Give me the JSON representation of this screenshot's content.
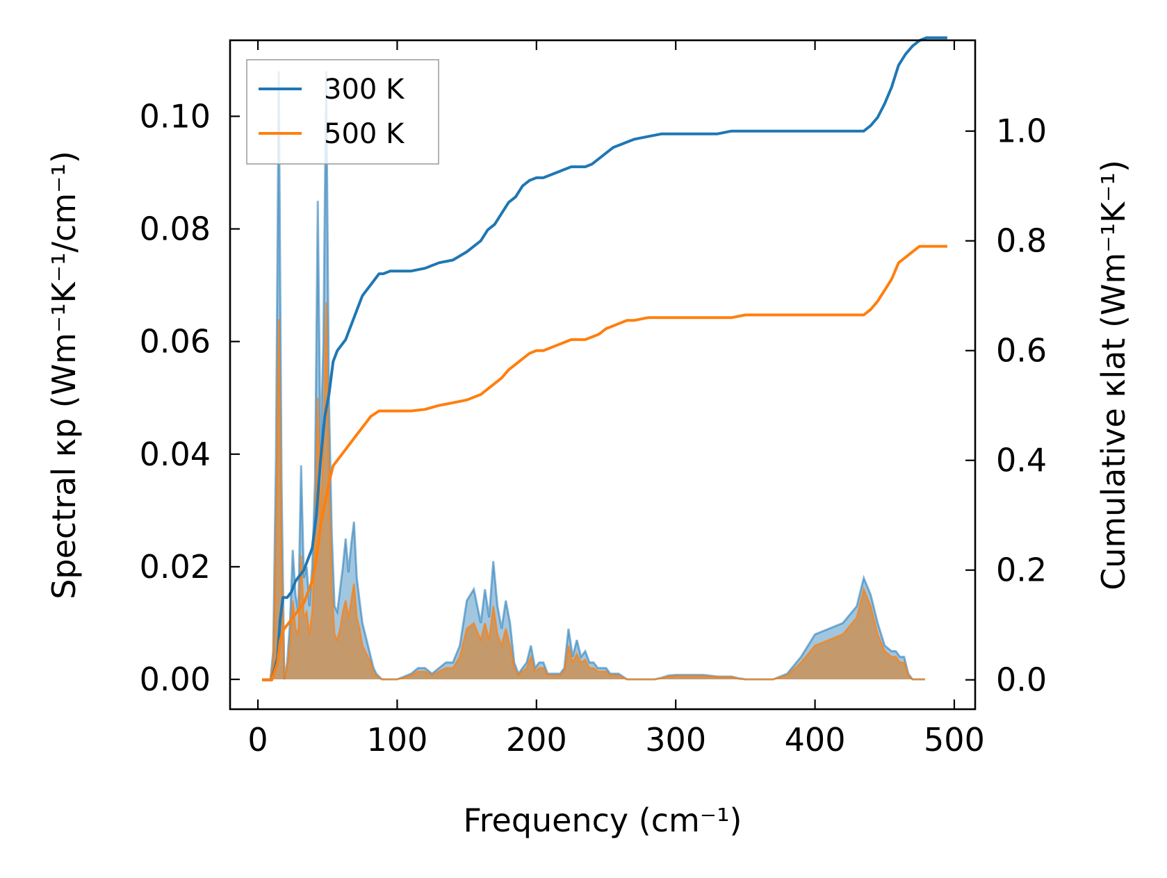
{
  "chart_data": {
    "type": "line",
    "xlabel": "Frequency (cm⁻¹)",
    "ylabel_left": "Spectral κp (Wm⁻¹K⁻¹/cm⁻¹)",
    "ylabel_right": "Cumulative κlat (Wm⁻¹K⁻¹)",
    "xlim": [
      -20,
      515
    ],
    "ylim_left": [
      -0.0053,
      0.1135
    ],
    "ylim_right": [
      -0.0535,
      1.1655
    ],
    "x_ticks": [
      "0",
      "100",
      "200",
      "300",
      "400",
      "500"
    ],
    "y_ticks_left": [
      "0.00",
      "0.02",
      "0.04",
      "0.06",
      "0.08",
      "0.10"
    ],
    "y_ticks_right": [
      "0.0",
      "0.2",
      "0.4",
      "0.6",
      "0.8",
      "1.0"
    ],
    "legend": {
      "position": "top-left",
      "entries": [
        "300 K",
        "500 K"
      ]
    },
    "colors": {
      "300K": "#1f77b4",
      "500K": "#ff7f0e",
      "overlap": "#c49a6c"
    },
    "spectral": {
      "x": [
        3,
        9,
        11,
        13,
        15,
        17,
        19,
        21,
        23,
        25,
        27,
        29,
        31,
        33,
        35,
        37,
        39,
        41,
        43,
        45,
        47,
        49,
        51,
        53,
        55,
        57,
        59,
        61,
        63,
        65,
        67,
        69,
        71,
        73,
        75,
        77,
        79,
        81,
        83,
        85,
        87,
        89,
        91,
        93,
        95,
        97,
        100,
        105,
        110,
        115,
        120,
        125,
        130,
        135,
        140,
        145,
        150,
        155,
        160,
        163,
        166,
        169,
        172,
        175,
        178,
        181,
        184,
        187,
        190,
        193,
        196,
        199,
        202,
        205,
        208,
        211,
        214,
        217,
        220,
        223,
        226,
        229,
        232,
        235,
        238,
        241,
        244,
        247,
        250,
        253,
        256,
        259,
        262,
        265,
        268,
        271,
        275,
        280,
        285,
        290,
        295,
        300,
        310,
        320,
        330,
        335,
        340,
        345,
        350,
        355,
        360,
        365,
        370,
        380,
        390,
        400,
        410,
        420,
        430,
        435,
        440,
        445,
        450,
        455,
        458,
        461,
        464,
        467,
        470,
        473,
        476,
        479,
        482,
        485,
        490,
        495
      ],
      "k300": [
        0,
        0,
        0.005,
        0.04,
        0.108,
        0.035,
        0,
        0.003,
        0.01,
        0.023,
        0.015,
        0.012,
        0.038,
        0.018,
        0.02,
        0.013,
        0.02,
        0.035,
        0.085,
        0.04,
        0.06,
        0.108,
        0.05,
        0.026,
        0.013,
        0.012,
        0.016,
        0.02,
        0.025,
        0.019,
        0.024,
        0.028,
        0.018,
        0.014,
        0.01,
        0.008,
        0.006,
        0.004,
        0.002,
        0.001,
        0.0005,
        0,
        0,
        0,
        0,
        0,
        0,
        0.0005,
        0.001,
        0.002,
        0.002,
        0.001,
        0.002,
        0.003,
        0.003,
        0.006,
        0.014,
        0.016,
        0.01,
        0.016,
        0.011,
        0.021,
        0.013,
        0.009,
        0.014,
        0.01,
        0.003,
        0.001,
        0.002,
        0.003,
        0.006,
        0.002,
        0.003,
        0.003,
        0.001,
        0.001,
        0.001,
        0.001,
        0.002,
        0.009,
        0.004,
        0.007,
        0.004,
        0.005,
        0.003,
        0.003,
        0.002,
        0.002,
        0.002,
        0.001,
        0.001,
        0.001,
        0.0005,
        0,
        0,
        0,
        0,
        0,
        0,
        0.0003,
        0.0007,
        0.0008,
        0.0008,
        0.0008,
        0.0005,
        0.0005,
        0.0005,
        0.0002,
        0,
        0,
        0,
        0,
        0,
        0.001,
        0.004,
        0.008,
        0.009,
        0.01,
        0.013,
        0.018,
        0.015,
        0.01,
        0.006,
        0.005,
        0.005,
        0.004,
        0.004,
        0.001,
        0,
        0,
        0,
        0
      ],
      "k500": [
        0,
        0,
        0.003,
        0.025,
        0.064,
        0.02,
        0,
        0.002,
        0.006,
        0.014,
        0.009,
        0.008,
        0.022,
        0.011,
        0.012,
        0.008,
        0.012,
        0.024,
        0.05,
        0.028,
        0.042,
        0.067,
        0.035,
        0.016,
        0.008,
        0.007,
        0.009,
        0.012,
        0.014,
        0.011,
        0.014,
        0.017,
        0.011,
        0.009,
        0.006,
        0.005,
        0.004,
        0.003,
        0.001,
        0.0007,
        0.0003,
        0,
        0,
        0,
        0,
        0,
        0,
        0.0003,
        0.0007,
        0.0014,
        0.0014,
        0.0007,
        0.0014,
        0.002,
        0.002,
        0.004,
        0.009,
        0.01,
        0.007,
        0.01,
        0.007,
        0.013,
        0.008,
        0.006,
        0.009,
        0.006,
        0.002,
        0.0007,
        0.0014,
        0.002,
        0.004,
        0.0014,
        0.002,
        0.002,
        0.0007,
        0.0007,
        0.0007,
        0.0007,
        0.0014,
        0.006,
        0.003,
        0.0045,
        0.003,
        0.0035,
        0.002,
        0.002,
        0.0014,
        0.0014,
        0.0014,
        0.0007,
        0.0007,
        0.0007,
        0.0003,
        0,
        0,
        0,
        0,
        0,
        0,
        0.0002,
        0.0005,
        0.0006,
        0.0006,
        0.0006,
        0.0004,
        0.0004,
        0.0004,
        0.0001,
        0,
        0,
        0,
        0,
        0,
        0.0007,
        0.003,
        0.006,
        0.007,
        0.008,
        0.011,
        0.016,
        0.013,
        0.008,
        0.005,
        0.004,
        0.004,
        0.003,
        0.003,
        0.0007,
        0,
        0,
        0,
        0
      ]
    },
    "cumulative": {
      "x": [
        3,
        10,
        14,
        16,
        18,
        21,
        24,
        27,
        30,
        33,
        36,
        39,
        42,
        45,
        48,
        51,
        54,
        57,
        60,
        63,
        66,
        69,
        72,
        75,
        78,
        81,
        84,
        87,
        90,
        95,
        100,
        105,
        110,
        120,
        130,
        140,
        150,
        160,
        165,
        170,
        175,
        180,
        185,
        190,
        195,
        200,
        205,
        210,
        215,
        220,
        225,
        230,
        235,
        240,
        245,
        250,
        255,
        260,
        265,
        270,
        280,
        290,
        300,
        310,
        320,
        330,
        340,
        350,
        360,
        370,
        380,
        390,
        400,
        410,
        420,
        430,
        435,
        440,
        445,
        450,
        455,
        460,
        465,
        470,
        475,
        480,
        485,
        490,
        495
      ],
      "k300": [
        0,
        0,
        0.04,
        0.11,
        0.15,
        0.15,
        0.16,
        0.18,
        0.19,
        0.2,
        0.22,
        0.24,
        0.3,
        0.4,
        0.48,
        0.52,
        0.58,
        0.6,
        0.61,
        0.62,
        0.64,
        0.66,
        0.68,
        0.7,
        0.71,
        0.72,
        0.73,
        0.74,
        0.74,
        0.745,
        0.745,
        0.745,
        0.745,
        0.75,
        0.76,
        0.765,
        0.78,
        0.8,
        0.82,
        0.83,
        0.85,
        0.87,
        0.88,
        0.9,
        0.91,
        0.915,
        0.915,
        0.92,
        0.925,
        0.93,
        0.935,
        0.935,
        0.935,
        0.94,
        0.95,
        0.96,
        0.97,
        0.975,
        0.98,
        0.985,
        0.99,
        0.995,
        0.995,
        0.995,
        0.995,
        0.995,
        1.0,
        1.0,
        1.0,
        1.0,
        1.0,
        1.0,
        1.0,
        1.0,
        1.0,
        1.0,
        1.0,
        1.01,
        1.025,
        1.05,
        1.08,
        1.12,
        1.14,
        1.155,
        1.165,
        1.17,
        1.17,
        1.17,
        1.17
      ],
      "k500": [
        0,
        0,
        0.03,
        0.07,
        0.09,
        0.1,
        0.11,
        0.12,
        0.13,
        0.14,
        0.16,
        0.18,
        0.22,
        0.28,
        0.32,
        0.36,
        0.39,
        0.4,
        0.41,
        0.42,
        0.43,
        0.44,
        0.45,
        0.46,
        0.47,
        0.48,
        0.485,
        0.49,
        0.49,
        0.49,
        0.49,
        0.49,
        0.49,
        0.493,
        0.5,
        0.505,
        0.51,
        0.52,
        0.53,
        0.54,
        0.55,
        0.565,
        0.575,
        0.585,
        0.595,
        0.6,
        0.6,
        0.605,
        0.61,
        0.615,
        0.62,
        0.62,
        0.62,
        0.625,
        0.63,
        0.64,
        0.645,
        0.65,
        0.655,
        0.655,
        0.66,
        0.66,
        0.66,
        0.66,
        0.66,
        0.66,
        0.66,
        0.665,
        0.665,
        0.665,
        0.665,
        0.665,
        0.665,
        0.665,
        0.665,
        0.665,
        0.665,
        0.675,
        0.69,
        0.71,
        0.73,
        0.76,
        0.77,
        0.78,
        0.79,
        0.79,
        0.79,
        0.79,
        0.79
      ]
    }
  }
}
